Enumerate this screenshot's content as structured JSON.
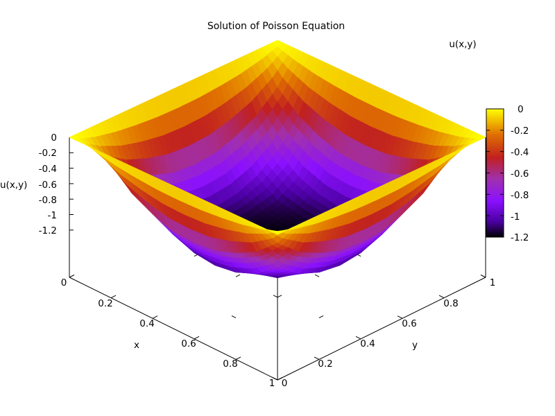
{
  "chart_data": {
    "type": "surface",
    "title": "Solution of Poisson Equation",
    "xlabel": "x",
    "ylabel": "y",
    "zlabel": "u(x,y)",
    "legend_label": "u(x,y)",
    "xlim": [
      0,
      1
    ],
    "ylim": [
      0,
      1
    ],
    "zlim": [
      -1.2,
      0
    ],
    "x_ticks": [
      "0",
      "0.2",
      "0.4",
      "0.6",
      "0.8",
      "1"
    ],
    "y_ticks": [
      "0",
      "0.2",
      "0.4",
      "0.6",
      "0.8",
      "1"
    ],
    "z_ticks": [
      "0",
      "-0.2",
      "-0.4",
      "-0.6",
      "-0.8",
      "-1",
      "-1.2"
    ],
    "colorbar": {
      "range": [
        -1.2,
        0
      ],
      "ticks": [
        "0",
        "-0.2",
        "-0.4",
        "-0.6",
        "-0.8",
        "-1",
        "-1.2"
      ],
      "palette": [
        "#000000",
        "#4a00a0",
        "#8a10ff",
        "#a030b0",
        "#c02020",
        "#e07000",
        "#ffff00"
      ]
    },
    "surface": {
      "grid": [
        [
          0,
          0,
          0,
          0,
          0,
          0,
          0,
          0,
          0,
          0,
          0
        ],
        [
          0,
          -0.3,
          -0.5,
          -0.62,
          -0.7,
          -0.72,
          -0.7,
          -0.62,
          -0.5,
          -0.3,
          0
        ],
        [
          0,
          -0.5,
          -0.78,
          -0.95,
          -1.04,
          -1.07,
          -1.04,
          -0.95,
          -0.78,
          -0.5,
          0
        ],
        [
          0,
          -0.62,
          -0.95,
          -1.1,
          -1.15,
          -1.17,
          -1.15,
          -1.1,
          -0.95,
          -0.62,
          0
        ],
        [
          0,
          -0.7,
          -1.04,
          -1.15,
          -1.18,
          -1.19,
          -1.18,
          -1.15,
          -1.04,
          -0.7,
          0
        ],
        [
          0,
          -0.72,
          -1.07,
          -1.17,
          -1.19,
          -1.2,
          -1.19,
          -1.17,
          -1.07,
          -0.72,
          0
        ],
        [
          0,
          -0.7,
          -1.04,
          -1.15,
          -1.18,
          -1.19,
          -1.18,
          -1.15,
          -1.04,
          -0.7,
          0
        ],
        [
          0,
          -0.62,
          -0.95,
          -1.1,
          -1.15,
          -1.17,
          -1.15,
          -1.1,
          -0.95,
          -0.62,
          0
        ],
        [
          0,
          -0.5,
          -0.78,
          -0.95,
          -1.04,
          -1.07,
          -1.04,
          -0.95,
          -0.78,
          -0.5,
          0
        ],
        [
          0,
          -0.3,
          -0.5,
          -0.62,
          -0.7,
          -0.72,
          -0.7,
          -0.62,
          -0.5,
          -0.3,
          0
        ],
        [
          0,
          0,
          0,
          0,
          0,
          0,
          0,
          0,
          0,
          0,
          0
        ]
      ],
      "x_values": [
        0,
        0.1,
        0.2,
        0.3,
        0.4,
        0.5,
        0.6,
        0.7,
        0.8,
        0.9,
        1
      ],
      "y_values": [
        0,
        0.1,
        0.2,
        0.3,
        0.4,
        0.5,
        0.6,
        0.7,
        0.8,
        0.9,
        1
      ]
    }
  }
}
